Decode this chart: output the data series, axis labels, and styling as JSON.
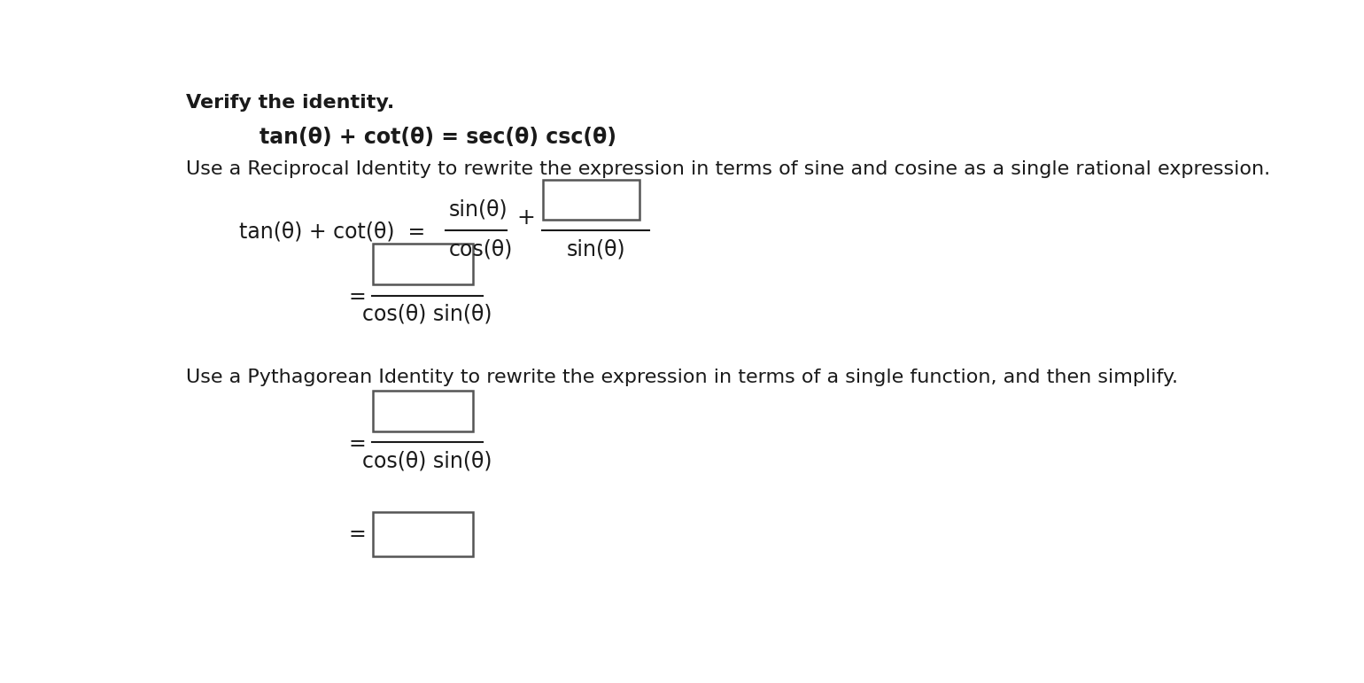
{
  "bg_color": "#ffffff",
  "text_color": "#1a1a1a",
  "box_color": "#555555",
  "box_fill": "#ffffff",
  "font_size": 16,
  "font_family": "DejaVu Sans",
  "line1": "Verify the identity.",
  "line2_normal": "tan(θ) + cot(θ) = ",
  "line2_bold": "sec(θ) csc(θ)",
  "instruction1": "Use a Reciprocal Identity to rewrite the expression in terms of sine and cosine as a single rational expression.",
  "instruction2": "Use a Pythagorean Identity to rewrite the expression in terms of a single function, and then simplify.",
  "lhs_label": "tan(θ) + cot(θ)  =",
  "frac1_num": "sin(θ)",
  "frac1_den": "cos(θ)",
  "frac2_den": "sin(θ)",
  "den_row2": "cos(θ) sin(θ)",
  "den_row3": "cos(θ) sin(θ)"
}
